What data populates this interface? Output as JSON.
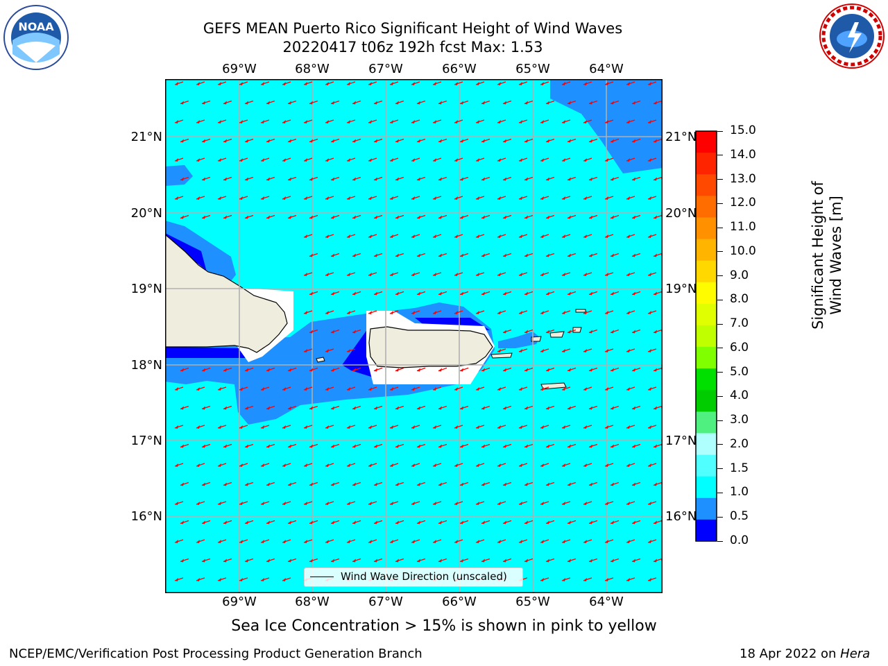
{
  "header": {
    "title_line1": "GEFS MEAN Puerto Rico Significant Height of Wind Waves",
    "title_line2": "20220417 t06z 192h fcst   Max: 1.53",
    "noaa_logo_text": "NOAA",
    "nws_logo_text": "NATIONAL WEATHER SERVICE"
  },
  "map": {
    "lon_labels": [
      "69°W",
      "68°W",
      "67°W",
      "66°W",
      "65°W",
      "64°W"
    ],
    "lat_labels": [
      "21°N",
      "20°N",
      "19°N",
      "18°N",
      "17°N",
      "16°N"
    ],
    "colors": {
      "ocean_cyan": "#00ffff",
      "band_mid": "#1e90ff",
      "band_low": "#0000ff",
      "land": "#efedde",
      "arrow": "#ff0000",
      "grid": "#b0b0b0"
    },
    "legend_label": "Wind Wave Direction (unscaled)"
  },
  "colorbar": {
    "title": "Significant Height of Wind Waves [m]",
    "ticks": [
      "15.0",
      "14.0",
      "13.0",
      "12.0",
      "11.0",
      "10.0",
      "9.0",
      "8.0",
      "7.0",
      "6.0",
      "5.0",
      "4.0",
      "3.0",
      "2.0",
      "1.5",
      "1.0",
      "0.5",
      "0.0"
    ],
    "band_colors": [
      "#ff0000",
      "#ff2400",
      "#ff4800",
      "#ff6c00",
      "#ff9000",
      "#ffb400",
      "#ffd800",
      "#fffc00",
      "#e0ff00",
      "#c0ff00",
      "#80ff00",
      "#00e000",
      "#00cc00",
      "#50f080",
      "#b0ffff",
      "#50ffff",
      "#00ffff",
      "#1e90ff",
      "#0000ff"
    ]
  },
  "footer": {
    "sea_ice_note": "Sea Ice Concentration > 15% is shown in pink to yellow",
    "branch": "NCEP/EMC/Verification Post Processing Product Generation Branch",
    "date_prefix": "18 Apr 2022 on ",
    "host": "Hera"
  }
}
